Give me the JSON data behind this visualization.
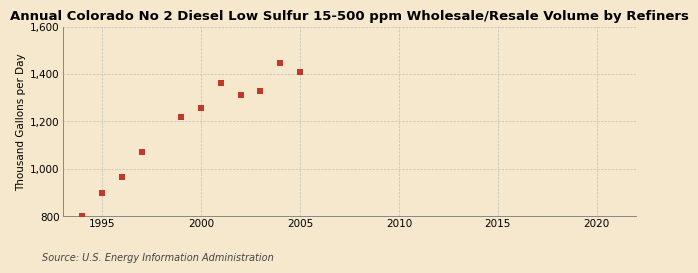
{
  "title": "Annual Colorado No 2 Diesel Low Sulfur 15-500 ppm Wholesale/Resale Volume by Refiners",
  "ylabel": "Thousand Gallons per Day",
  "source": "Source: U.S. Energy Information Administration",
  "x_data": [
    1994,
    1995,
    1996,
    1997,
    1999,
    2000,
    2001,
    2002,
    2003,
    2004,
    2005
  ],
  "y_data": [
    800,
    900,
    965,
    1070,
    1220,
    1255,
    1360,
    1310,
    1330,
    1445,
    1410
  ],
  "xlim": [
    1993,
    2022
  ],
  "ylim": [
    800,
    1600
  ],
  "xticks": [
    1995,
    2000,
    2005,
    2010,
    2015,
    2020
  ],
  "yticks": [
    800,
    1000,
    1200,
    1400,
    1600
  ],
  "ytick_labels": [
    "800",
    "1,000",
    "1,200",
    "1,400",
    "1,600"
  ],
  "marker_color": "#c0392b",
  "marker": "s",
  "marker_size": 16,
  "background_color": "#f5e8cc",
  "grid_color": "#bbbbbb",
  "title_fontsize": 9.5,
  "label_fontsize": 7.5,
  "source_fontsize": 7,
  "tick_fontsize": 7.5
}
